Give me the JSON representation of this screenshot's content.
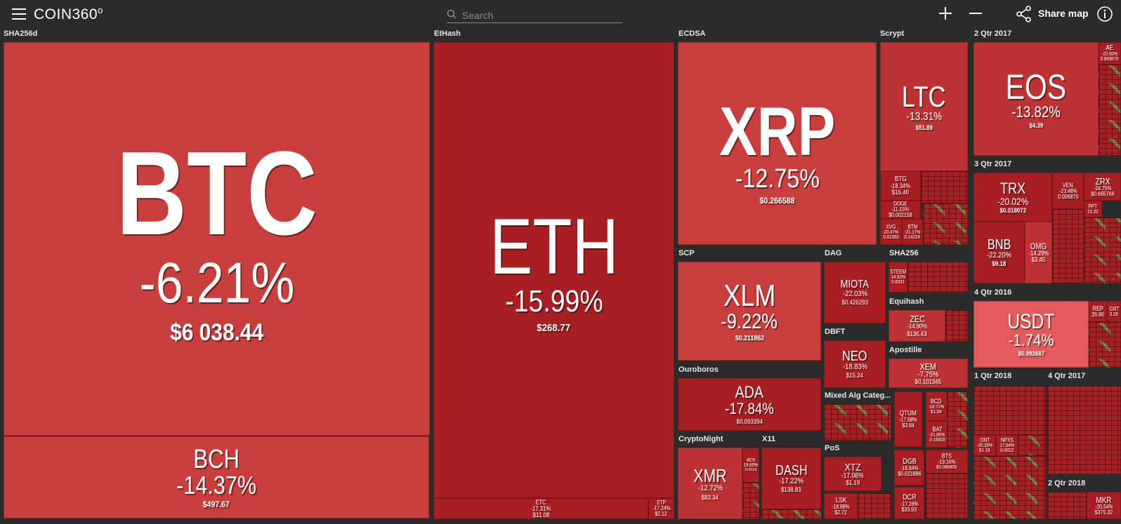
{
  "app": {
    "title": "COIN360",
    "title_mark": "o",
    "search_placeholder": "Search",
    "share_label": "Share map",
    "icons": [
      "menu-icon",
      "search-icon",
      "plus-icon",
      "minus-icon",
      "share-icon",
      "info-icon"
    ]
  },
  "colors": {
    "background": "#2b2b2b",
    "tile_red": "#c93d3d",
    "tile_dark_red": "#a71f22",
    "tile_light_red": "#e45a5a",
    "tile_green": "#6aa55a"
  },
  "groups": {
    "sha256d": "SHA256d",
    "ethash": "EtHash",
    "ecdsa": "ECDSA",
    "scrypt": "Scrypt",
    "q2_2017": "2 Qtr 2017",
    "q3_2017": "3 Qtr 2017",
    "scp": "SCP",
    "dag": "DAG",
    "sha256": "SHA256",
    "equihash": "Equihash",
    "dbft": "DBFT",
    "apostille": "Apostille",
    "q4_2016": "4 Qtr 2016",
    "ouroboros": "Ouroboros",
    "mixed": "Mixed Alg Categ...",
    "q1_2018": "1 Qtr 2018",
    "q4_2017": "4 Qtr 2017",
    "cryptonight": "CryptoNight",
    "x11": "X11",
    "pos": "PoS",
    "q2_2018": "2 Qtr 2018"
  },
  "tiles": {
    "btc": {
      "symbol": "BTC",
      "change": "-6.21%",
      "price": "$6 038.44"
    },
    "bch": {
      "symbol": "BCH",
      "change": "-14.37%",
      "price": "$497.67"
    },
    "eth": {
      "symbol": "ETH",
      "change": "-15.99%",
      "price": "$268.77"
    },
    "etc": {
      "symbol": "ETC",
      "change": "-17.31%",
      "price": "$11.08"
    },
    "etp": {
      "symbol": "ETP",
      "change": "-17.24%",
      "price": "$2.12"
    },
    "xrp": {
      "symbol": "XRP",
      "change": "-12.75%",
      "price": "$0.266588"
    },
    "ltc": {
      "symbol": "LTC",
      "change": "-13.31%",
      "price": "$51.89"
    },
    "btg": {
      "symbol": "BTG",
      "change": "-18.34%",
      "price": "$16.40"
    },
    "doge": {
      "symbol": "DOGE",
      "change": "-11.15%",
      "price": "$0.002159"
    },
    "xvg": {
      "symbol": "XVG",
      "change": "-20.47%",
      "price": "0.01060"
    },
    "btm": {
      "symbol": "BTM",
      "change": "-21.17%",
      "price": "0.14224"
    },
    "eos": {
      "symbol": "EOS",
      "change": "-13.82%",
      "price": "$4.39"
    },
    "ae": {
      "symbol": "AE",
      "change": "-22.60%",
      "price": "0.883870"
    },
    "trx": {
      "symbol": "TRX",
      "change": "-20.02%",
      "price": "$0.018072"
    },
    "ven": {
      "symbol": "VEN",
      "change": "-23.48%",
      "price": "0.006870"
    },
    "zrx": {
      "symbol": "ZRX",
      "change": "-24.75%",
      "price": "$0.665766"
    },
    "ppt": {
      "symbol": "PPT",
      "change": "",
      "price": "15.20"
    },
    "bnb": {
      "symbol": "BNB",
      "change": "-22.20%",
      "price": "$9.18"
    },
    "omg": {
      "symbol": "OMG",
      "change": "-14.29%",
      "price": "$3.45"
    },
    "xlm": {
      "symbol": "XLM",
      "change": "-9.22%",
      "price": "$0.211862"
    },
    "miota": {
      "symbol": "MIOTA",
      "change": "-22.03%",
      "price": "$0.426293"
    },
    "steem": {
      "symbol": "STEEM",
      "change": "14.93%",
      "price": "0.8331"
    },
    "zec": {
      "symbol": "ZEC",
      "change": "-14.90%",
      "price": "$136.43"
    },
    "neo": {
      "symbol": "NEO",
      "change": "-18.83%",
      "price": "$15.24"
    },
    "xem": {
      "symbol": "XEM",
      "change": "-7.75%",
      "price": "$0.101345"
    },
    "usdt": {
      "symbol": "USDT",
      "change": "-1.74%",
      "price": "$0.992687"
    },
    "rep": {
      "symbol": "REP",
      "change": "",
      "price": "26.90"
    },
    "gnt": {
      "symbol": "GNT",
      "change": "",
      "price": "3.28"
    },
    "ada": {
      "symbol": "ADA",
      "change": "-17.84%",
      "price": "$0.093394"
    },
    "qtum": {
      "symbol": "QTUM",
      "change": "-17.68%",
      "price": "$3.84"
    },
    "bcd": {
      "symbol": "BCD",
      "change": "-18.72%",
      "price": "$1.04"
    },
    "bat": {
      "symbol": "BAT",
      "change": "-21.85%",
      "price": "0.16928"
    },
    "xmr": {
      "symbol": "XMR",
      "change": "-12.72%",
      "price": "$83.34"
    },
    "bcn": {
      "symbol": "BCN",
      "change": "19.66%",
      "price": "0.0015"
    },
    "dash": {
      "symbol": "DASH",
      "change": "-17.22%",
      "price": "$138.83"
    },
    "xtz": {
      "symbol": "XTZ",
      "change": "-17.06%",
      "price": "$1.19"
    },
    "lsk": {
      "symbol": "LSK",
      "change": "-18.88%",
      "price": "$2.72"
    },
    "dgb": {
      "symbol": "DGB",
      "change": "-18.84%",
      "price": "$0.021886"
    },
    "bts": {
      "symbol": "BTS",
      "change": "-19.16%",
      "price": "$0.096805"
    },
    "dcr": {
      "symbol": "DCR",
      "change": "-17.16%",
      "price": "$33.93"
    },
    "ont": {
      "symbol": "ONT",
      "change": "-20.35%",
      "price": "$1.19"
    },
    "npxs": {
      "symbol": "NPXS",
      "change": "17.54%",
      "price": "0.0012"
    },
    "mkr": {
      "symbol": "MKR",
      "change": "-20.54%",
      "price": "$375.32"
    }
  }
}
